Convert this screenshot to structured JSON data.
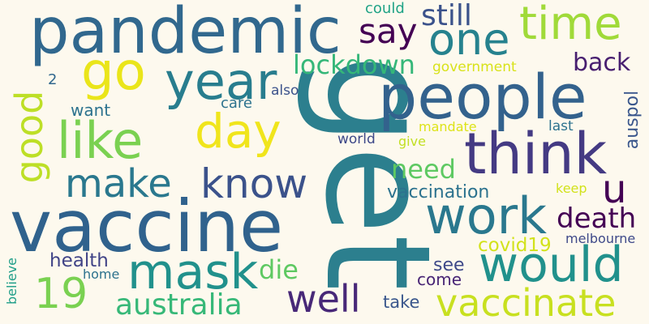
{
  "background": "#fdf9ee",
  "words": [
    {
      "text": "get",
      "color": "#2c7f8e"
    },
    {
      "text": "pandemic",
      "color": "#31688e"
    },
    {
      "text": "vaccine",
      "color": "#30628d"
    },
    {
      "text": "people",
      "color": "#33628d"
    },
    {
      "text": "think",
      "color": "#443a83"
    },
    {
      "text": "work",
      "color": "#2a788e"
    },
    {
      "text": "would",
      "color": "#21918c"
    },
    {
      "text": "vaccinate",
      "color": "#c8e020"
    },
    {
      "text": "mask",
      "color": "#21918c"
    },
    {
      "text": "go",
      "color": "#eae51a"
    },
    {
      "text": "year",
      "color": "#287d8e"
    },
    {
      "text": "like",
      "color": "#7ad151"
    },
    {
      "text": "day",
      "color": "#f0e51c"
    },
    {
      "text": "one",
      "color": "#26828e"
    },
    {
      "text": "time",
      "color": "#a0da39"
    },
    {
      "text": "know",
      "color": "#3b528b"
    },
    {
      "text": "make",
      "color": "#2a788e"
    },
    {
      "text": "good",
      "color": "#bddf26"
    },
    {
      "text": "australia",
      "color": "#37b878"
    },
    {
      "text": "well",
      "color": "#482878"
    },
    {
      "text": "19",
      "color": "#7ad151"
    },
    {
      "text": "u",
      "color": "#440154"
    },
    {
      "text": "say",
      "color": "#440154"
    },
    {
      "text": "still",
      "color": "#3b528b"
    },
    {
      "text": "lockdown",
      "color": "#35b779"
    },
    {
      "text": "death",
      "color": "#440154"
    },
    {
      "text": "need",
      "color": "#5ec962"
    },
    {
      "text": "back",
      "color": "#481f70"
    },
    {
      "text": "die",
      "color": "#5ec962"
    },
    {
      "text": "vaccination",
      "color": "#2c728e"
    },
    {
      "text": "health",
      "color": "#414487"
    },
    {
      "text": "covid19",
      "color": "#d2e21b"
    },
    {
      "text": "auspol",
      "color": "#39568c"
    },
    {
      "text": "see",
      "color": "#3e4989"
    },
    {
      "text": "come",
      "color": "#482475"
    },
    {
      "text": "take",
      "color": "#39568c"
    },
    {
      "text": "want",
      "color": "#2c728e"
    },
    {
      "text": "care",
      "color": "#2c728e"
    },
    {
      "text": "also",
      "color": "#3b528b"
    },
    {
      "text": "could",
      "color": "#20a386"
    },
    {
      "text": "government",
      "color": "#d8e219"
    },
    {
      "text": "mandate",
      "color": "#dde318"
    },
    {
      "text": "give",
      "color": "#c2df23"
    },
    {
      "text": "world",
      "color": "#3e4989"
    },
    {
      "text": "last",
      "color": "#2c728e"
    },
    {
      "text": "melbourne",
      "color": "#3e4989"
    },
    {
      "text": "keep",
      "color": "#d2e21b"
    },
    {
      "text": "home",
      "color": "#2c728e"
    },
    {
      "text": "believe",
      "color": "#1f9e89"
    },
    {
      "text": "2",
      "color": "#31688e"
    }
  ]
}
